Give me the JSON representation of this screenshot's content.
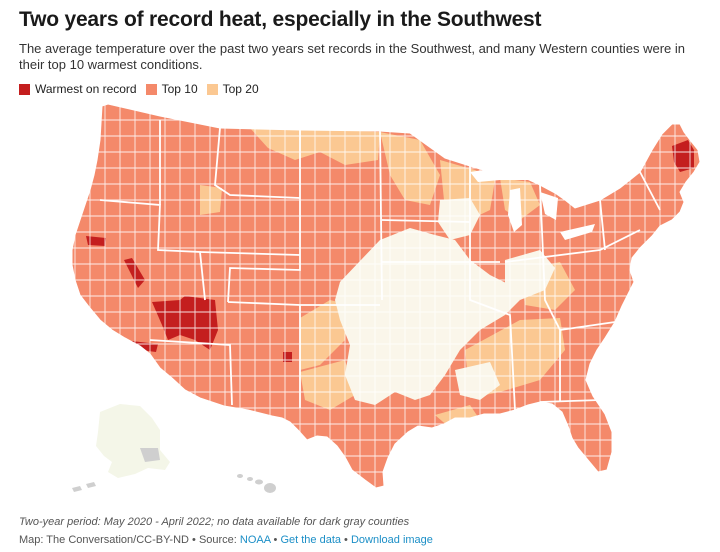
{
  "title": "Two years of record heat, especially in the Southwest",
  "subtitle": "The average temperature over the past two years set records in the Southwest, and many Western counties were in their top 10 warmest conditions.",
  "legend": {
    "items": [
      {
        "label": "Warmest on record",
        "color": "#c41e1e"
      },
      {
        "label": "Top 10",
        "color": "#f4896a"
      },
      {
        "label": "Top 20",
        "color": "#fbc892"
      }
    ]
  },
  "colors": {
    "none": "#faf6ea",
    "no_data": "#cfcfcf",
    "border": "#ffffff"
  },
  "footer": {
    "note": "Two-year period: May 2020 - April 2022; no data available for dark gray counties",
    "credit": "Map: The Conversation/CC-BY-ND",
    "sep": " • ",
    "source_prefix": "Source: ",
    "source_link": "NOAA",
    "get_data": "Get the data",
    "download": "Download image"
  }
}
